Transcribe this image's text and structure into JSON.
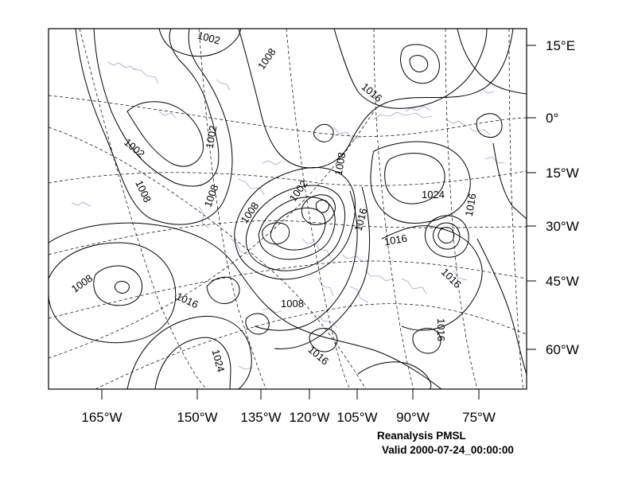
{
  "map": {
    "title": "Reanalysis PMSL",
    "valid": "Valid 2000-07-24_00:00:00",
    "bottom_axis": [
      "165°W",
      "150°W",
      "135°W",
      "120°W",
      "105°W",
      "90°W",
      "75°W"
    ],
    "right_axis": [
      "15°E",
      "0°",
      "15°W",
      "30°W",
      "45°W",
      "60°W"
    ],
    "contour_labels": [
      "1002",
      "1008",
      "1016",
      "1002",
      "1002",
      "1008",
      "1008",
      "1008",
      "1002",
      "1008",
      "1024",
      "1016",
      "1016",
      "1016",
      "1008",
      "1016",
      "1016",
      "1024",
      "1016",
      "1008",
      "1016",
      "1016"
    ],
    "colors": {
      "contour": "#000000",
      "coastline": "#b39bd6",
      "graticule": "#000000"
    }
  }
}
